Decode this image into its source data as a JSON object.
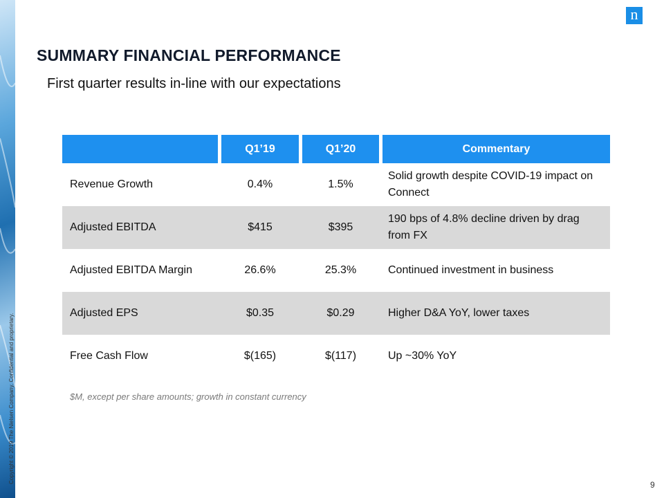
{
  "logo": "n",
  "title": "SUMMARY FINANCIAL PERFORMANCE",
  "subtitle": "First quarter results in-line with our expectations",
  "table": {
    "headers": [
      "Q1’19",
      "Q1’20",
      "Commentary"
    ],
    "rows": [
      [
        "Revenue Growth",
        "0.4%",
        "1.5%",
        "Solid growth despite COVID-19 impact on Connect"
      ],
      [
        "Adjusted EBITDA",
        "$415",
        "$395",
        "190 bps of 4.8% decline driven by drag from FX"
      ],
      [
        "Adjusted EBITDA Margin",
        "26.6%",
        "25.3%",
        "Continued investment in business"
      ],
      [
        "Adjusted EPS",
        "$0.35",
        "$0.29",
        "Higher D&A YoY, lower taxes"
      ],
      [
        "Free Cash Flow",
        "$(165)",
        "$(117)",
        "Up ~30% YoY"
      ]
    ]
  },
  "footnote": "$M, except per share amounts; growth in constant currency",
  "copyright": "Copyright © 2019 The Nielsen Company. Confidential and proprietary.",
  "page_number": "9"
}
